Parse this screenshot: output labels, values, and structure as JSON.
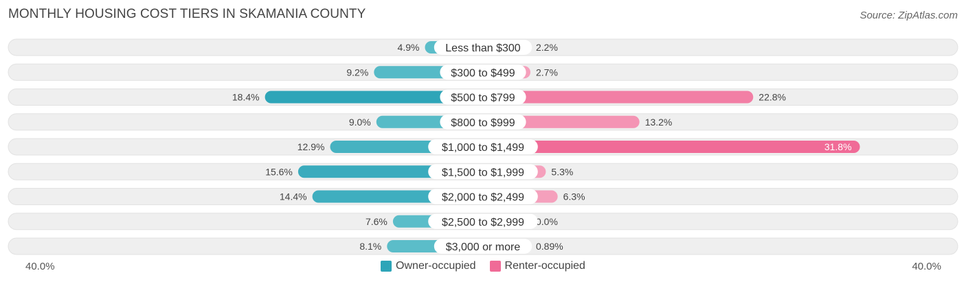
{
  "header": {
    "title": "MONTHLY HOUSING COST TIERS IN SKAMANIA COUNTY",
    "source": "Source: ZipAtlas.com"
  },
  "colors": {
    "owner": "#5bbdc9",
    "owner_dark": "#2ea5b8",
    "renter": "#f5a0bc",
    "renter_dark": "#f06b97",
    "row_bg": "#efefef"
  },
  "chart_data": {
    "type": "bar",
    "orientation": "horizontal-diverging",
    "title": "MONTHLY HOUSING COST TIERS IN SKAMANIA COUNTY",
    "categories": [
      "Less than $300",
      "$300 to $499",
      "$500 to $799",
      "$800 to $999",
      "$1,000 to $1,499",
      "$1,500 to $1,999",
      "$2,000 to $2,499",
      "$2,500 to $2,999",
      "$3,000 or more"
    ],
    "series": [
      {
        "name": "Owner-occupied",
        "side": "left",
        "values": [
          4.9,
          9.2,
          18.4,
          9.0,
          12.9,
          15.6,
          14.4,
          7.6,
          8.1
        ],
        "labels": [
          "4.9%",
          "9.2%",
          "18.4%",
          "9.0%",
          "12.9%",
          "15.6%",
          "14.4%",
          "7.6%",
          "8.1%"
        ]
      },
      {
        "name": "Renter-occupied",
        "side": "right",
        "values": [
          2.2,
          2.7,
          22.8,
          13.2,
          31.8,
          5.3,
          6.3,
          0.0,
          0.89
        ],
        "labels": [
          "2.2%",
          "2.7%",
          "22.8%",
          "13.2%",
          "31.8%",
          "5.3%",
          "6.3%",
          "0.0%",
          "0.89%"
        ]
      }
    ],
    "axis": {
      "min_label": "40.0%",
      "max_label": "40.0%",
      "max": 40.0
    },
    "legend": [
      "Owner-occupied",
      "Renter-occupied"
    ]
  }
}
